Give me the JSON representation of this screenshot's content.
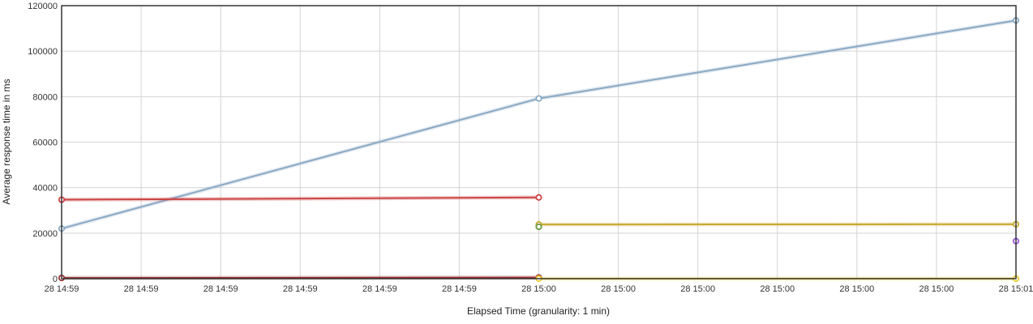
{
  "chart_data": {
    "type": "line",
    "title": "",
    "xlabel": "Elapsed Time (granularity: 1 min)",
    "ylabel": "Average response time in ms",
    "ylim": [
      0,
      120000
    ],
    "yticks": [
      "0",
      "20000",
      "40000",
      "60000",
      "80000",
      "100000",
      "120000"
    ],
    "xticks": [
      "28 14:59",
      "28 14:59",
      "28 14:59",
      "28 14:59",
      "28 14:59",
      "28 14:59",
      "28 15:00",
      "28 15:00",
      "28 15:00",
      "28 15:00",
      "28 15:00",
      "28 15:00",
      "28 15:01"
    ],
    "x_positions": [
      "14:59",
      "15:00",
      "15:01"
    ],
    "grid": true,
    "legend": "none",
    "series": [
      {
        "color": "#8aa9c4",
        "points": [
          [
            0,
            22000
          ],
          [
            1,
            79200
          ],
          [
            2,
            113500
          ]
        ]
      },
      {
        "color": "#cc4444",
        "points": [
          [
            0,
            34700
          ],
          [
            1,
            35700
          ]
        ]
      },
      {
        "color": "#993333",
        "points": [
          [
            0,
            300
          ],
          [
            1,
            500
          ]
        ]
      },
      {
        "color": "#c8a830",
        "points": [
          [
            1,
            23800
          ],
          [
            2,
            23900
          ]
        ]
      },
      {
        "color": "#6a9a40",
        "points": [
          [
            1,
            22800
          ]
        ]
      },
      {
        "color": "#e8c830",
        "points": [
          [
            1,
            0
          ],
          [
            2,
            0
          ]
        ]
      },
      {
        "color": "#9955dd",
        "points": [
          [
            2,
            16500
          ]
        ]
      }
    ]
  }
}
